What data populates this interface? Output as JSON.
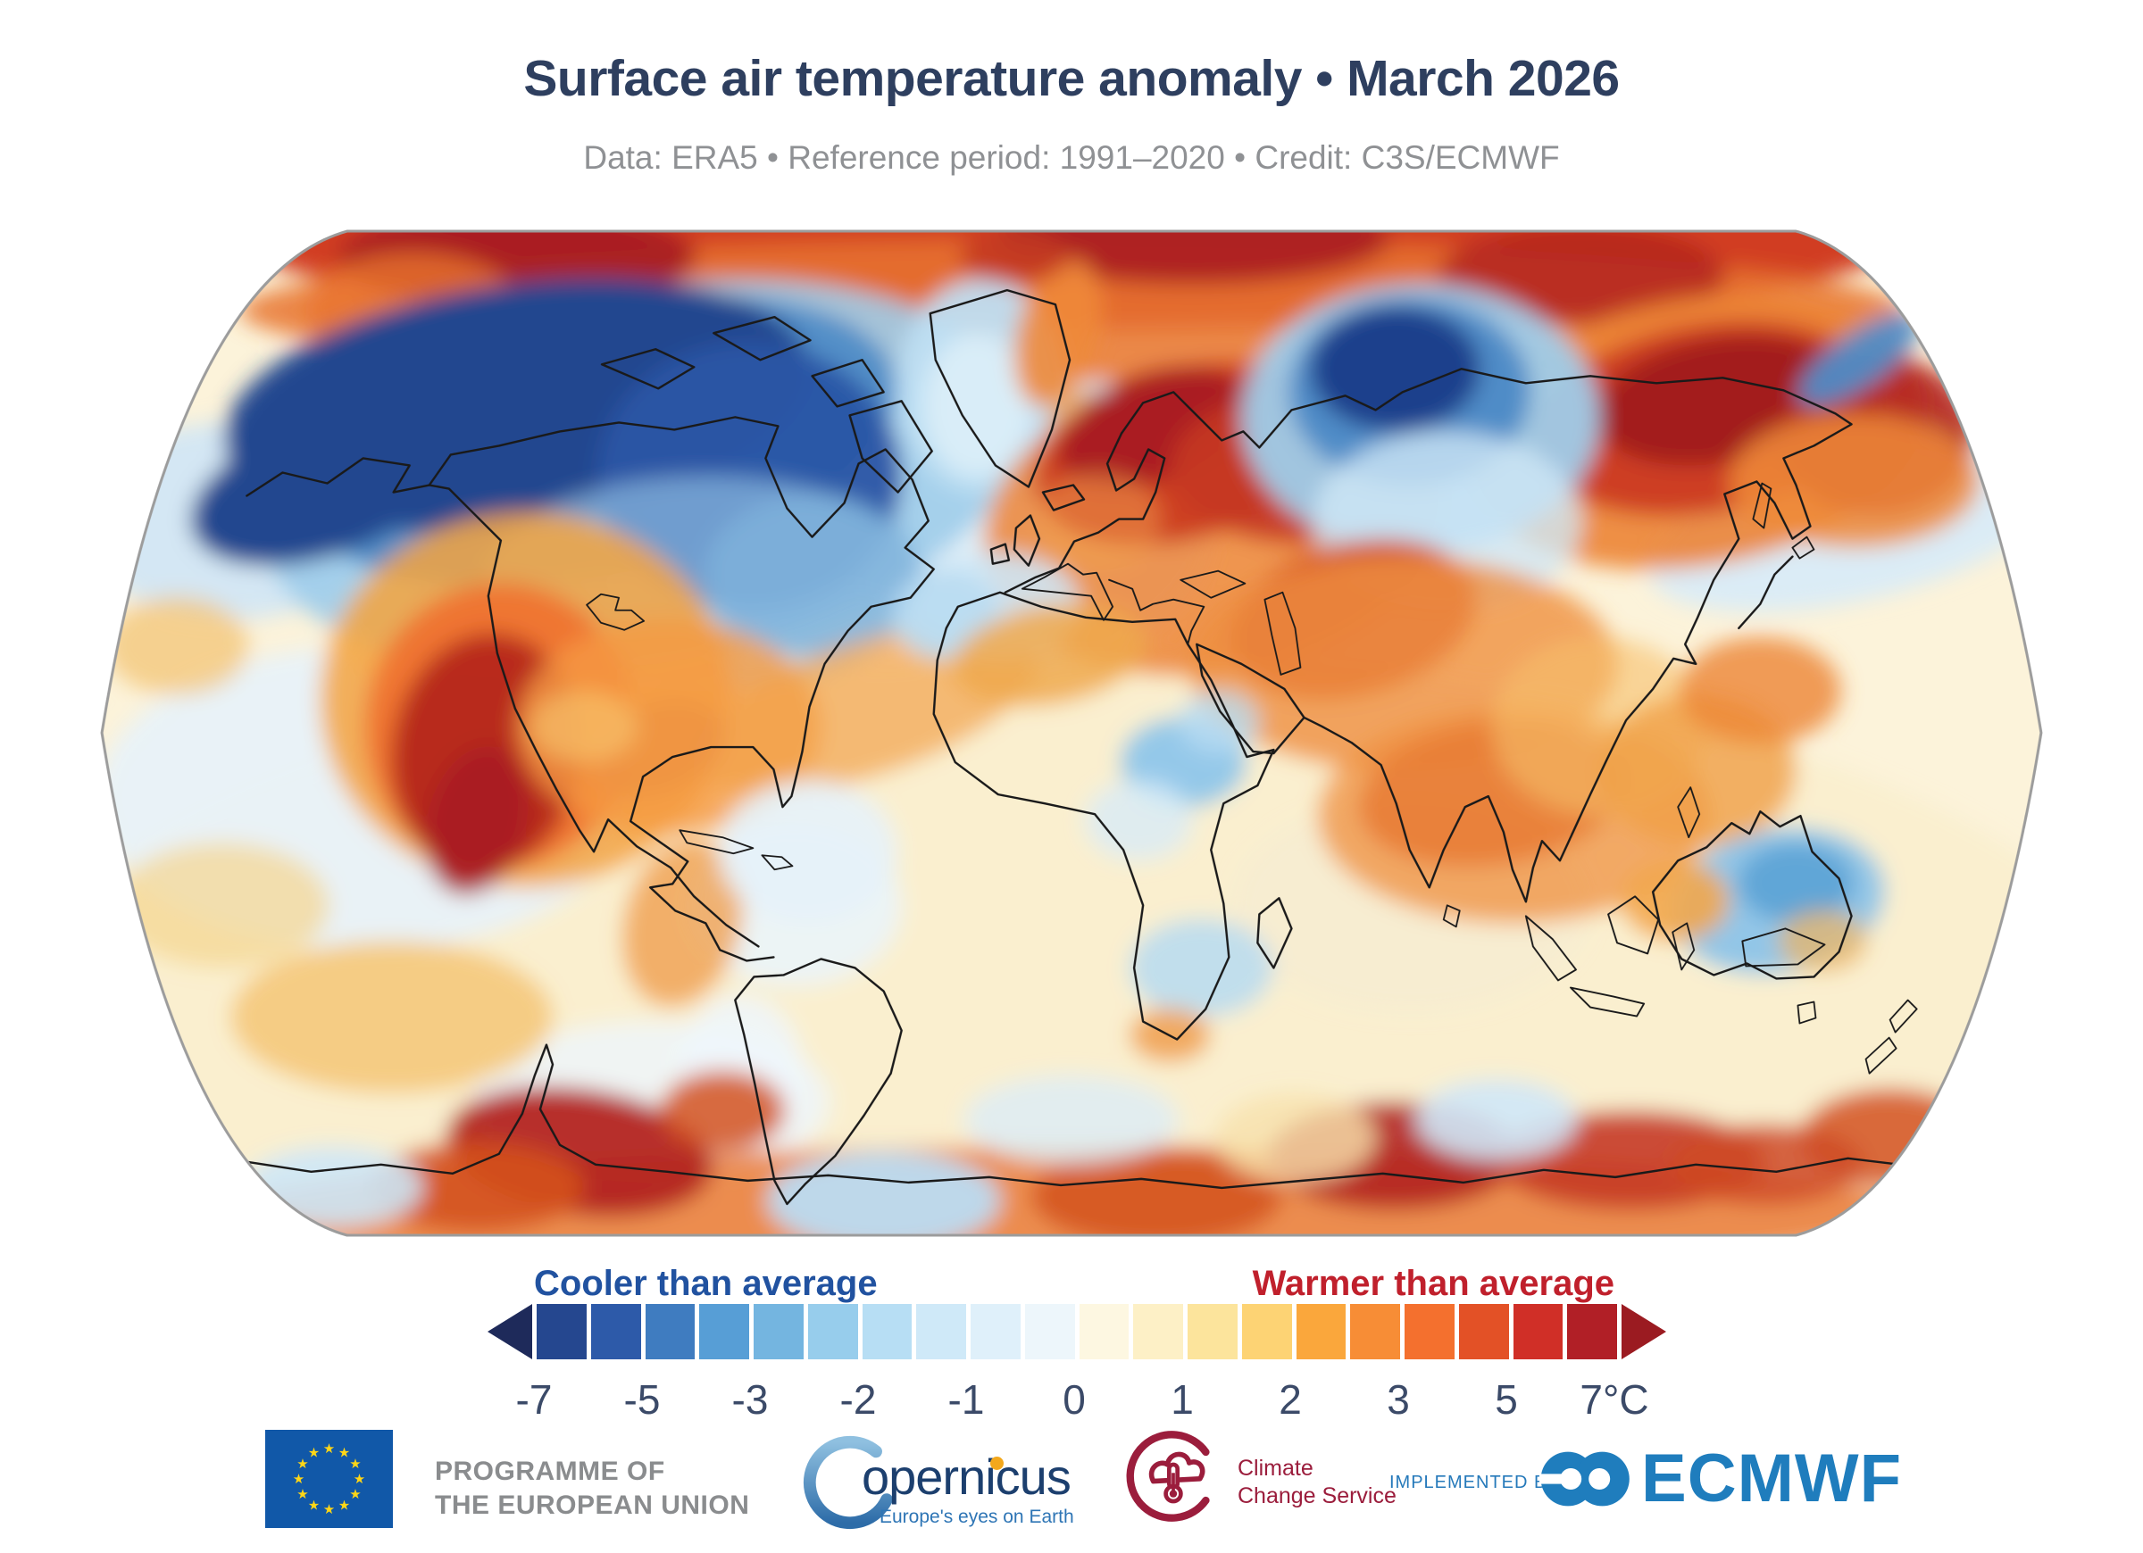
{
  "header": {
    "title": "Surface air temperature anomaly • March 2026",
    "subtitle": "Data: ERA5 • Reference period: 1991–2020 • Credit: C3S/ECMWF"
  },
  "legend": {
    "cooler_label": "Cooler than average",
    "warmer_label": "Warmer than average",
    "cooler_color": "#2152a0",
    "warmer_color": "#c0202c",
    "tick_labels": [
      "-7",
      "-5",
      "-3",
      "-2",
      "-1",
      "0",
      "1",
      "2",
      "3",
      "5",
      "7°C"
    ],
    "unit": "°C",
    "segment_colors": [
      "#25478f",
      "#2d5aa9",
      "#3f7cc0",
      "#579ed6",
      "#74b5e0",
      "#97cdec",
      "#b7def4",
      "#cfe9f8",
      "#dff0fa",
      "#edf6fb",
      "#fdf7e1",
      "#fdf0c6",
      "#fce49c",
      "#fdd374",
      "#faa73c",
      "#f78d36",
      "#f4702e",
      "#e35126",
      "#d02f27",
      "#b11f26"
    ],
    "left_arrow_color": "#1e2a5a",
    "right_arrow_color": "#9b1b21"
  },
  "map": {
    "projection": "Robinson world map",
    "ocean_base_color": "#fcf3da",
    "outline_color": "#9c9c9c",
    "coastline_color": "#1a1a1a",
    "anomaly_regions": [
      {
        "region": "Arctic rim",
        "anomaly": "strongly warmer (+5 to +7°C)"
      },
      {
        "region": "Alaska / northern Canada / Hudson Bay",
        "anomaly": "strongly cooler (-5 to -7°C)"
      },
      {
        "region": "Western and central United States, northern Mexico",
        "anomaly": "strongly warmer (+3 to +7°C)"
      },
      {
        "region": "Greenland interior and North Atlantic",
        "anomaly": "slightly cooler (-1 to -2°C)"
      },
      {
        "region": "Scandinavia and eastern Europe",
        "anomaly": "strongly warmer (+3 to +7°C)"
      },
      {
        "region": "Kara Sea / north-central Siberia",
        "anomaly": "strongly cooler (-5 to -7°C)"
      },
      {
        "region": "Eastern Siberia and Chukotka",
        "anomaly": "strongly warmer (+5 to +7°C)"
      },
      {
        "region": "Central Asia and Tibetan Plateau",
        "anomaly": "warmer (+2 to +5°C)"
      },
      {
        "region": "East Africa",
        "anomaly": "slightly cooler (-1 to -2°C)"
      },
      {
        "region": "Central Australia",
        "anomaly": "slightly cooler (-1 to -2°C)"
      },
      {
        "region": "Antarctic coast",
        "anomaly": "warmer (+3 to +7°C) with scattered cooler patches"
      },
      {
        "region": "Tropical oceans",
        "anomaly": "near average (0 to +1°C)"
      }
    ]
  },
  "footer": {
    "eu": {
      "line1": "PROGRAMME OF",
      "line2": "THE EUROPEAN UNION",
      "flag_color": "#1158a8",
      "star_color": "#ffd617"
    },
    "copernicus": {
      "wordmark": "opernicus",
      "tagline": "Europe's eyes on Earth"
    },
    "c3s": {
      "line1": "Climate",
      "line2": "Change Service",
      "brand_color": "#9b1d3c"
    },
    "implemented_by": "IMPLEMENTED BY",
    "ecmwf": {
      "name": "ECMWF",
      "brand_color": "#1f7dbd"
    }
  }
}
